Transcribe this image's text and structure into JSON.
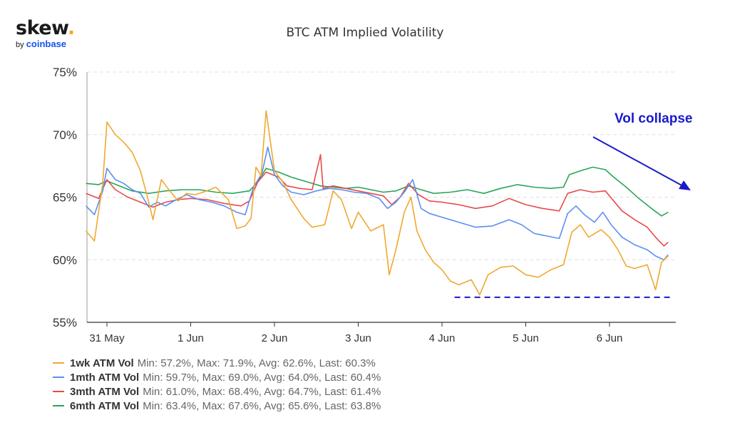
{
  "brand": {
    "name": "skew",
    "dot": ".",
    "by": "by",
    "sub": "coinbase"
  },
  "chart_data": {
    "type": "line",
    "title": "BTC ATM Implied Volatility",
    "yticks": [
      "75%",
      "70%",
      "65%",
      "60%",
      "55%"
    ],
    "ylim": [
      55,
      75
    ],
    "xticks": [
      "31 May",
      "1 Jun",
      "2 Jun",
      "3 Jun",
      "4 Jun",
      "5 Jun",
      "6 Jun"
    ],
    "xlim": [
      0,
      6.7
    ],
    "grid": true,
    "legend_position": "bottom-left",
    "series": [
      {
        "name": "1wk ATM Vol",
        "stats": "Min: 57.2%, Max: 71.9%, Avg: 62.6%, Last: 60.3%",
        "color": "#f0a830",
        "points": [
          [
            -0.25,
            62.3
          ],
          [
            -0.15,
            61.5
          ],
          [
            -0.05,
            66.1
          ],
          [
            0.0,
            71.0
          ],
          [
            0.1,
            70.0
          ],
          [
            0.2,
            69.4
          ],
          [
            0.3,
            68.6
          ],
          [
            0.4,
            67.1
          ],
          [
            0.48,
            65.1
          ],
          [
            0.55,
            63.2
          ],
          [
            0.65,
            66.4
          ],
          [
            0.75,
            65.5
          ],
          [
            0.85,
            64.7
          ],
          [
            0.95,
            65.3
          ],
          [
            1.05,
            65.2
          ],
          [
            1.15,
            65.4
          ],
          [
            1.3,
            65.8
          ],
          [
            1.45,
            64.8
          ],
          [
            1.55,
            62.5
          ],
          [
            1.65,
            62.7
          ],
          [
            1.72,
            63.3
          ],
          [
            1.78,
            67.4
          ],
          [
            1.84,
            66.7
          ],
          [
            1.9,
            71.9
          ],
          [
            2.0,
            67.1
          ],
          [
            2.1,
            66.2
          ],
          [
            2.2,
            64.8
          ],
          [
            2.35,
            63.3
          ],
          [
            2.45,
            62.6
          ],
          [
            2.6,
            62.8
          ],
          [
            2.7,
            65.5
          ],
          [
            2.8,
            64.8
          ],
          [
            2.92,
            62.5
          ],
          [
            3.0,
            63.8
          ],
          [
            3.15,
            62.3
          ],
          [
            3.3,
            62.8
          ],
          [
            3.37,
            58.8
          ],
          [
            3.45,
            60.8
          ],
          [
            3.55,
            63.8
          ],
          [
            3.63,
            65.0
          ],
          [
            3.7,
            62.3
          ],
          [
            3.8,
            60.8
          ],
          [
            3.9,
            59.8
          ],
          [
            4.0,
            59.2
          ],
          [
            4.1,
            58.3
          ],
          [
            4.2,
            58.0
          ],
          [
            4.35,
            58.4
          ],
          [
            4.45,
            57.2
          ],
          [
            4.55,
            58.8
          ],
          [
            4.7,
            59.4
          ],
          [
            4.85,
            59.5
          ],
          [
            5.0,
            58.8
          ],
          [
            5.15,
            58.6
          ],
          [
            5.3,
            59.2
          ],
          [
            5.45,
            59.6
          ],
          [
            5.55,
            62.2
          ],
          [
            5.65,
            62.8
          ],
          [
            5.75,
            61.8
          ],
          [
            5.9,
            62.4
          ],
          [
            6.0,
            61.8
          ],
          [
            6.1,
            60.8
          ],
          [
            6.2,
            59.5
          ],
          [
            6.3,
            59.3
          ],
          [
            6.45,
            59.6
          ],
          [
            6.55,
            57.6
          ],
          [
            6.62,
            59.8
          ],
          [
            6.7,
            60.3
          ]
        ]
      },
      {
        "name": "1mth ATM Vol",
        "stats": "Min: 59.7%, Max: 69.0%, Avg: 64.0%, Last: 60.4%",
        "color": "#5b8ff0",
        "points": [
          [
            -0.25,
            64.3
          ],
          [
            -0.15,
            63.6
          ],
          [
            -0.05,
            65.5
          ],
          [
            0.0,
            67.3
          ],
          [
            0.1,
            66.4
          ],
          [
            0.2,
            66.1
          ],
          [
            0.3,
            65.6
          ],
          [
            0.4,
            65.3
          ],
          [
            0.5,
            64.2
          ],
          [
            0.6,
            64.6
          ],
          [
            0.7,
            64.3
          ],
          [
            0.8,
            64.7
          ],
          [
            0.95,
            65.2
          ],
          [
            1.1,
            64.8
          ],
          [
            1.25,
            64.6
          ],
          [
            1.4,
            64.3
          ],
          [
            1.55,
            63.8
          ],
          [
            1.65,
            63.6
          ],
          [
            1.75,
            65.8
          ],
          [
            1.85,
            66.9
          ],
          [
            1.92,
            69.0
          ],
          [
            2.0,
            66.8
          ],
          [
            2.1,
            65.9
          ],
          [
            2.2,
            65.4
          ],
          [
            2.35,
            65.2
          ],
          [
            2.5,
            65.5
          ],
          [
            2.65,
            65.7
          ],
          [
            2.8,
            65.6
          ],
          [
            2.95,
            65.4
          ],
          [
            3.1,
            65.3
          ],
          [
            3.25,
            64.9
          ],
          [
            3.35,
            64.1
          ],
          [
            3.45,
            64.6
          ],
          [
            3.55,
            65.4
          ],
          [
            3.65,
            66.4
          ],
          [
            3.75,
            64.1
          ],
          [
            3.85,
            63.7
          ],
          [
            4.0,
            63.4
          ],
          [
            4.2,
            63.0
          ],
          [
            4.4,
            62.6
          ],
          [
            4.6,
            62.7
          ],
          [
            4.8,
            63.2
          ],
          [
            4.95,
            62.8
          ],
          [
            5.1,
            62.1
          ],
          [
            5.25,
            61.9
          ],
          [
            5.4,
            61.7
          ],
          [
            5.5,
            63.7
          ],
          [
            5.6,
            64.3
          ],
          [
            5.7,
            63.6
          ],
          [
            5.82,
            63.0
          ],
          [
            5.92,
            63.8
          ],
          [
            6.02,
            62.8
          ],
          [
            6.15,
            61.8
          ],
          [
            6.3,
            61.2
          ],
          [
            6.45,
            60.8
          ],
          [
            6.55,
            60.3
          ],
          [
            6.65,
            60.0
          ],
          [
            6.7,
            60.4
          ]
        ]
      },
      {
        "name": "3mth ATM Vol",
        "stats": "Min: 61.0%, Max: 68.4%, Avg: 64.7%, Last: 61.4%",
        "color": "#e84a4a",
        "points": [
          [
            -0.25,
            65.3
          ],
          [
            -0.1,
            64.9
          ],
          [
            0.0,
            66.4
          ],
          [
            0.1,
            65.6
          ],
          [
            0.25,
            65.0
          ],
          [
            0.4,
            64.6
          ],
          [
            0.55,
            64.2
          ],
          [
            0.7,
            64.6
          ],
          [
            0.85,
            64.8
          ],
          [
            1.0,
            64.9
          ],
          [
            1.2,
            64.8
          ],
          [
            1.4,
            64.5
          ],
          [
            1.6,
            64.3
          ],
          [
            1.7,
            64.7
          ],
          [
            1.8,
            66.2
          ],
          [
            1.9,
            67.0
          ],
          [
            2.05,
            66.6
          ],
          [
            2.15,
            65.9
          ],
          [
            2.3,
            65.7
          ],
          [
            2.45,
            65.6
          ],
          [
            2.55,
            68.4
          ],
          [
            2.58,
            65.7
          ],
          [
            2.7,
            65.9
          ],
          [
            2.85,
            65.7
          ],
          [
            3.0,
            65.5
          ],
          [
            3.15,
            65.3
          ],
          [
            3.3,
            65.1
          ],
          [
            3.4,
            64.4
          ],
          [
            3.5,
            65.0
          ],
          [
            3.6,
            66.1
          ],
          [
            3.72,
            65.2
          ],
          [
            3.85,
            64.7
          ],
          [
            4.0,
            64.6
          ],
          [
            4.2,
            64.4
          ],
          [
            4.4,
            64.1
          ],
          [
            4.6,
            64.3
          ],
          [
            4.8,
            64.9
          ],
          [
            5.0,
            64.4
          ],
          [
            5.2,
            64.1
          ],
          [
            5.4,
            63.9
          ],
          [
            5.5,
            65.3
          ],
          [
            5.65,
            65.6
          ],
          [
            5.8,
            65.4
          ],
          [
            5.95,
            65.5
          ],
          [
            6.05,
            64.7
          ],
          [
            6.15,
            63.9
          ],
          [
            6.3,
            63.2
          ],
          [
            6.45,
            62.6
          ],
          [
            6.55,
            61.8
          ],
          [
            6.65,
            61.1
          ],
          [
            6.7,
            61.4
          ]
        ]
      },
      {
        "name": "6mth ATM Vol",
        "stats": "Min: 63.4%, Max: 67.6%, Avg: 65.6%, Last: 63.8%",
        "color": "#2aa55a",
        "points": [
          [
            -0.25,
            66.1
          ],
          [
            -0.1,
            66.0
          ],
          [
            0.0,
            66.3
          ],
          [
            0.15,
            65.9
          ],
          [
            0.3,
            65.5
          ],
          [
            0.5,
            65.3
          ],
          [
            0.7,
            65.5
          ],
          [
            0.9,
            65.6
          ],
          [
            1.1,
            65.6
          ],
          [
            1.3,
            65.4
          ],
          [
            1.5,
            65.3
          ],
          [
            1.7,
            65.5
          ],
          [
            1.8,
            66.2
          ],
          [
            1.9,
            67.3
          ],
          [
            2.05,
            67.0
          ],
          [
            2.2,
            66.6
          ],
          [
            2.4,
            66.2
          ],
          [
            2.55,
            65.9
          ],
          [
            2.7,
            65.8
          ],
          [
            2.85,
            65.7
          ],
          [
            3.0,
            65.8
          ],
          [
            3.15,
            65.6
          ],
          [
            3.3,
            65.4
          ],
          [
            3.45,
            65.5
          ],
          [
            3.6,
            65.9
          ],
          [
            3.75,
            65.6
          ],
          [
            3.9,
            65.3
          ],
          [
            4.1,
            65.4
          ],
          [
            4.3,
            65.6
          ],
          [
            4.5,
            65.3
          ],
          [
            4.7,
            65.7
          ],
          [
            4.9,
            66.0
          ],
          [
            5.1,
            65.8
          ],
          [
            5.3,
            65.7
          ],
          [
            5.45,
            65.8
          ],
          [
            5.52,
            66.8
          ],
          [
            5.65,
            67.1
          ],
          [
            5.8,
            67.4
          ],
          [
            5.95,
            67.2
          ],
          [
            6.05,
            66.6
          ],
          [
            6.2,
            65.8
          ],
          [
            6.35,
            64.9
          ],
          [
            6.5,
            64.1
          ],
          [
            6.62,
            63.5
          ],
          [
            6.7,
            63.8
          ]
        ]
      }
    ],
    "reference_line": {
      "y": 57.0,
      "x_start": 4.15,
      "x_end": 6.72,
      "color": "#1a1acc"
    },
    "annotation": {
      "text": "Vol collapse",
      "color": "#1a1acc"
    }
  }
}
